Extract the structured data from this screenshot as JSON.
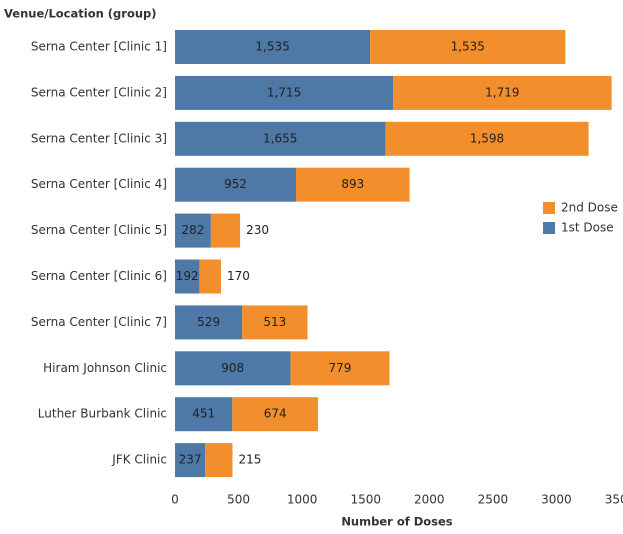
{
  "chart_data": {
    "type": "bar",
    "orientation": "horizontal",
    "stacked": true,
    "y_axis_title": "Venue/Location (group)",
    "x_axis_title": "Number of Doses",
    "categories": [
      "Serna Center [Clinic 1]",
      "Serna Center [Clinic 2]",
      "Serna Center [Clinic 3]",
      "Serna Center [Clinic 4]",
      "Serna Center [Clinic 5]",
      "Serna Center [Clinic 6]",
      "Serna Center [Clinic 7]",
      "Hiram Johnson Clinic",
      "Luther Burbank Clinic",
      "JFK Clinic"
    ],
    "series": [
      {
        "name": "1st Dose",
        "color": "#4e79a7",
        "values": [
          1535,
          1715,
          1655,
          952,
          282,
          192,
          529,
          908,
          451,
          237
        ],
        "value_labels": [
          "1,535",
          "1,715",
          "1,655",
          "952",
          "282",
          "192",
          "529",
          "908",
          "451",
          "237"
        ]
      },
      {
        "name": "2nd Dose",
        "color": "#f28e2b",
        "values": [
          1535,
          1719,
          1598,
          893,
          230,
          170,
          513,
          779,
          674,
          215
        ],
        "value_labels": [
          "1,535",
          "1,719",
          "1,598",
          "893",
          "230",
          "170",
          "513",
          "779",
          "674",
          "215"
        ]
      }
    ],
    "xlim": [
      0,
      3500
    ],
    "xticks": [
      0,
      500,
      1000,
      1500,
      2000,
      2500,
      3000,
      3500
    ],
    "legend": "right"
  }
}
